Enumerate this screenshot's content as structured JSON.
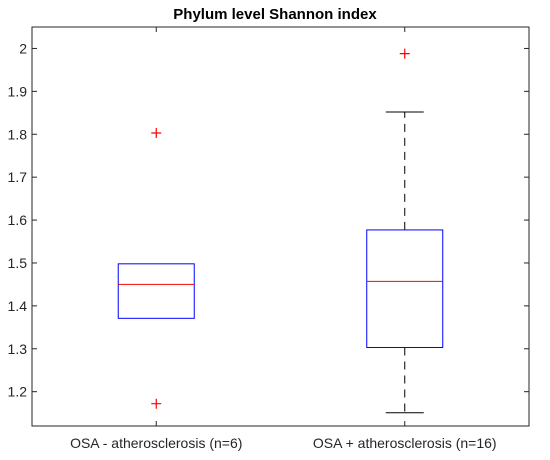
{
  "chart_data": {
    "type": "box",
    "title": "Phylum level Shannon index",
    "xlabel": "",
    "ylabel": "",
    "ylim": [
      1.12,
      2.05
    ],
    "yticks": [
      "1.2",
      "1.3",
      "1.4",
      "1.5",
      "1.6",
      "1.7",
      "1.8",
      "1.9",
      "2"
    ],
    "grid": false,
    "categories": [
      "OSA - atherosclerosis (n=6)",
      "OSA + atherosclerosis (n=16)"
    ],
    "boxes": [
      {
        "whisker_low": 1.371,
        "q1": 1.371,
        "median": 1.45,
        "q3": 1.498,
        "whisker_high": 1.498,
        "outliers": [
          1.803,
          1.172
        ]
      },
      {
        "whisker_low": 1.151,
        "q1": 1.303,
        "median": 1.457,
        "q3": 1.577,
        "whisker_high": 1.852,
        "outliers": [
          1.988
        ]
      }
    ],
    "colors": {
      "box": "#0000FF",
      "median": "#FF0000",
      "whisker": "#000000",
      "outlier": "#FF0000",
      "axes": "#262626"
    }
  }
}
